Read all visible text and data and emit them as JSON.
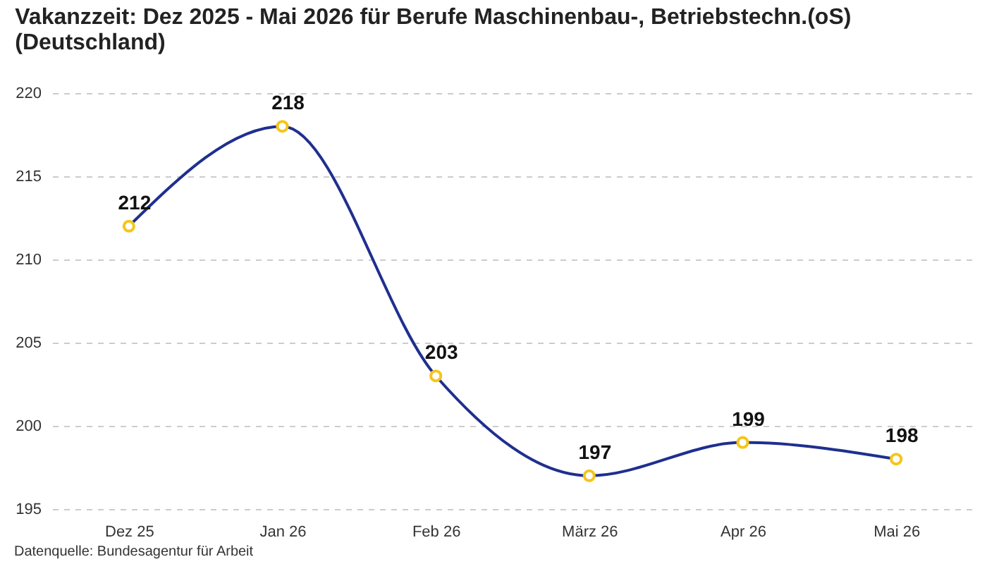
{
  "chart_data": {
    "type": "line",
    "title": "Vakanzzeit: Dez 2025 - Mai 2026 für Berufe Maschinenbau-, Betriebstechn.(oS) (Deutschland)",
    "categories": [
      "Dez 25",
      "Jan 26",
      "Feb 26",
      "März 26",
      "Apr 26",
      "Mai 26"
    ],
    "series": [
      {
        "color": "#1f2f8f",
        "values": [
          212,
          218,
          203,
          197,
          199,
          198
        ]
      }
    ],
    "ylim": [
      195,
      220
    ],
    "yticks": [
      195,
      200,
      205,
      210,
      215,
      220
    ],
    "grid": "y",
    "marker": "circle",
    "line_style": "solid",
    "data_labels": true,
    "annotations": [
      "Datenquelle: Bundesagentur für Arbeit"
    ]
  }
}
